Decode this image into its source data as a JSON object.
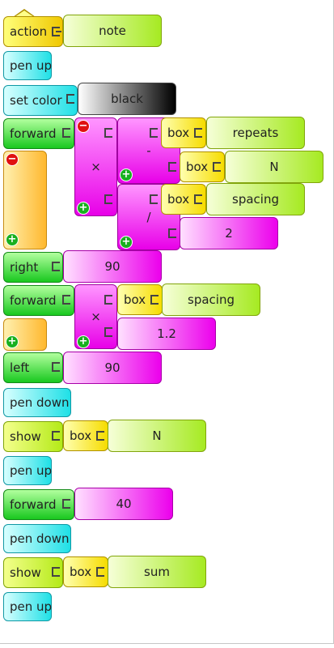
{
  "blocks": {
    "action": "action",
    "note_value": "note",
    "pen_up": "pen up",
    "set_color": "set color",
    "color_value": "black",
    "forward": "forward",
    "times": "×",
    "minus": "-",
    "divide": "/",
    "box": "box",
    "repeats": "repeats",
    "n_value": "N",
    "spacing": "spacing",
    "two": "2",
    "right": "right",
    "ninety": "90",
    "one_point_two": "1.2",
    "left": "left",
    "pen_down": "pen down",
    "show": "show",
    "forty": "40",
    "sum": "sum"
  },
  "colors": {
    "action": "#f6e600",
    "pen": "#22e2e8",
    "turtle_motion": "#22c82a",
    "number_arg": "#ee10ee",
    "text_arg": "#b2ee22",
    "box": "#f6dc00",
    "clamp": "#ffb82e"
  }
}
